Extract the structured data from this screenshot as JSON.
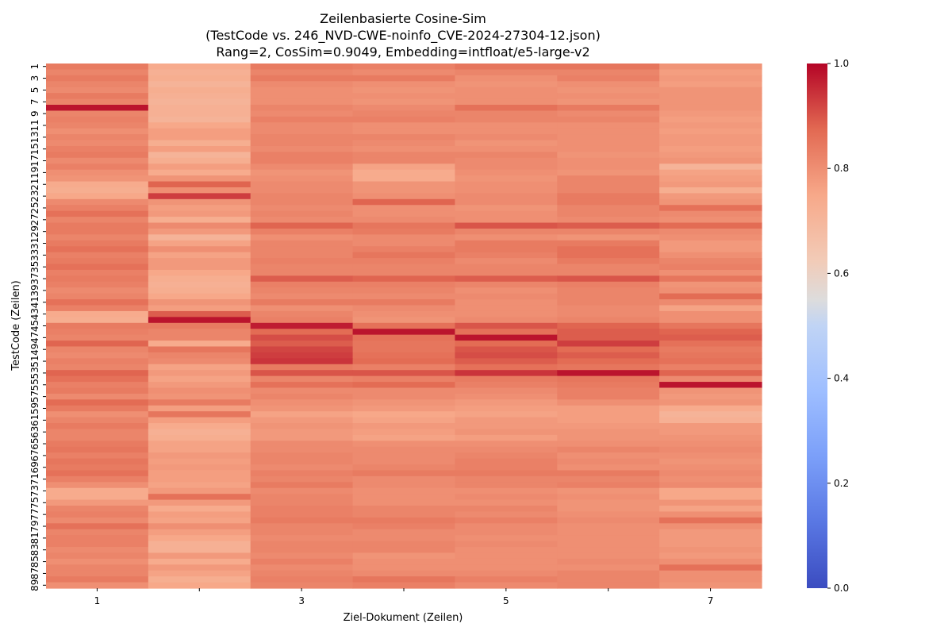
{
  "chart_data": {
    "type": "heatmap",
    "title": [
      "Zeilenbasierte Cosine-Sim",
      "(TestCode vs. 246_NVD-CWE-noinfo_CVE-2024-27304-12.json)",
      "Rang=2, CosSim=0.9049, Embedding=intfloat/e5-large-v2"
    ],
    "xlabel": "Ziel-Dokument (Zeilen)",
    "ylabel": "TestCode (Zeilen)",
    "x_categories": [
      1,
      2,
      3,
      4,
      5,
      6,
      7
    ],
    "x_tick_labels": [
      "1",
      "",
      "3",
      "",
      "5",
      "",
      "7"
    ],
    "y_row_count": 89,
    "y_tick_labels": [
      "1",
      "3",
      "5",
      "7",
      "9",
      "11",
      "13",
      "15",
      "17",
      "19",
      "21",
      "23",
      "25",
      "27",
      "29",
      "31",
      "33",
      "35",
      "37",
      "39",
      "41",
      "43",
      "45",
      "47",
      "49",
      "51",
      "53",
      "55",
      "57",
      "59",
      "61",
      "63",
      "65",
      "67",
      "69",
      "71",
      "73",
      "75",
      "77",
      "79",
      "81",
      "83",
      "85",
      "87",
      "89"
    ],
    "colorbar": {
      "min": 0.0,
      "max": 1.0,
      "ticks": [
        "0.0",
        "0.2",
        "0.4",
        "0.6",
        "0.8",
        "1.0"
      ],
      "colormap": "coolwarm"
    },
    "values": [
      [
        0.84,
        0.74,
        0.84,
        0.83,
        0.85,
        0.85,
        0.79
      ],
      [
        0.82,
        0.72,
        0.82,
        0.81,
        0.82,
        0.82,
        0.77
      ],
      [
        0.84,
        0.73,
        0.84,
        0.84,
        0.8,
        0.83,
        0.78
      ],
      [
        0.82,
        0.71,
        0.81,
        0.8,
        0.79,
        0.8,
        0.77
      ],
      [
        0.81,
        0.73,
        0.8,
        0.79,
        0.8,
        0.79,
        0.79
      ],
      [
        0.84,
        0.72,
        0.8,
        0.8,
        0.8,
        0.8,
        0.79
      ],
      [
        0.82,
        0.71,
        0.8,
        0.79,
        0.8,
        0.79,
        0.79
      ],
      [
        0.98,
        0.72,
        0.82,
        0.81,
        0.86,
        0.84,
        0.79
      ],
      [
        0.82,
        0.72,
        0.81,
        0.82,
        0.82,
        0.81,
        0.78
      ],
      [
        0.83,
        0.71,
        0.83,
        0.83,
        0.82,
        0.82,
        0.77
      ],
      [
        0.82,
        0.75,
        0.81,
        0.8,
        0.8,
        0.8,
        0.78
      ],
      [
        0.8,
        0.77,
        0.81,
        0.8,
        0.8,
        0.8,
        0.77
      ],
      [
        0.82,
        0.77,
        0.82,
        0.82,
        0.81,
        0.8,
        0.78
      ],
      [
        0.81,
        0.73,
        0.82,
        0.81,
        0.79,
        0.8,
        0.78
      ],
      [
        0.83,
        0.77,
        0.81,
        0.8,
        0.8,
        0.8,
        0.77
      ],
      [
        0.84,
        0.71,
        0.83,
        0.82,
        0.82,
        0.79,
        0.78
      ],
      [
        0.81,
        0.73,
        0.83,
        0.82,
        0.81,
        0.8,
        0.79
      ],
      [
        0.83,
        0.77,
        0.81,
        0.76,
        0.81,
        0.8,
        0.71
      ],
      [
        0.8,
        0.74,
        0.79,
        0.74,
        0.8,
        0.79,
        0.76
      ],
      [
        0.79,
        0.79,
        0.8,
        0.74,
        0.79,
        0.82,
        0.77
      ],
      [
        0.74,
        0.88,
        0.81,
        0.79,
        0.8,
        0.82,
        0.78
      ],
      [
        0.73,
        0.8,
        0.81,
        0.79,
        0.8,
        0.82,
        0.73
      ],
      [
        0.75,
        0.93,
        0.82,
        0.8,
        0.81,
        0.84,
        0.78
      ],
      [
        0.81,
        0.79,
        0.82,
        0.88,
        0.81,
        0.84,
        0.79
      ],
      [
        0.83,
        0.77,
        0.81,
        0.8,
        0.79,
        0.82,
        0.86
      ],
      [
        0.86,
        0.78,
        0.82,
        0.8,
        0.8,
        0.82,
        0.81
      ],
      [
        0.82,
        0.73,
        0.81,
        0.81,
        0.8,
        0.81,
        0.8
      ],
      [
        0.84,
        0.81,
        0.88,
        0.85,
        0.9,
        0.89,
        0.87
      ],
      [
        0.84,
        0.78,
        0.83,
        0.84,
        0.82,
        0.82,
        0.81
      ],
      [
        0.82,
        0.71,
        0.8,
        0.81,
        0.8,
        0.79,
        0.8
      ],
      [
        0.84,
        0.76,
        0.82,
        0.81,
        0.84,
        0.84,
        0.78
      ],
      [
        0.86,
        0.8,
        0.82,
        0.83,
        0.84,
        0.86,
        0.78
      ],
      [
        0.83,
        0.76,
        0.82,
        0.85,
        0.83,
        0.86,
        0.8
      ],
      [
        0.84,
        0.78,
        0.83,
        0.83,
        0.81,
        0.84,
        0.82
      ],
      [
        0.86,
        0.78,
        0.82,
        0.82,
        0.82,
        0.82,
        0.83
      ],
      [
        0.83,
        0.75,
        0.82,
        0.82,
        0.82,
        0.82,
        0.8
      ],
      [
        0.84,
        0.73,
        0.89,
        0.88,
        0.89,
        0.9,
        0.85
      ],
      [
        0.83,
        0.72,
        0.83,
        0.83,
        0.82,
        0.83,
        0.79
      ],
      [
        0.81,
        0.73,
        0.82,
        0.82,
        0.8,
        0.82,
        0.8
      ],
      [
        0.82,
        0.75,
        0.81,
        0.81,
        0.81,
        0.82,
        0.87
      ],
      [
        0.86,
        0.79,
        0.84,
        0.84,
        0.8,
        0.82,
        0.81
      ],
      [
        0.83,
        0.77,
        0.8,
        0.81,
        0.8,
        0.81,
        0.76
      ],
      [
        0.74,
        0.89,
        0.82,
        0.8,
        0.8,
        0.81,
        0.8
      ],
      [
        0.73,
        0.98,
        0.83,
        0.79,
        0.81,
        0.82,
        0.8
      ],
      [
        0.84,
        0.84,
        0.97,
        0.86,
        0.9,
        0.88,
        0.85
      ],
      [
        0.83,
        0.82,
        0.87,
        0.98,
        0.86,
        0.89,
        0.88
      ],
      [
        0.82,
        0.82,
        0.91,
        0.86,
        0.98,
        0.89,
        0.89
      ],
      [
        0.88,
        0.74,
        0.89,
        0.85,
        0.87,
        0.93,
        0.86
      ],
      [
        0.82,
        0.85,
        0.92,
        0.85,
        0.9,
        0.87,
        0.84
      ],
      [
        0.81,
        0.82,
        0.93,
        0.86,
        0.91,
        0.89,
        0.85
      ],
      [
        0.83,
        0.81,
        0.94,
        0.87,
        0.89,
        0.87,
        0.86
      ],
      [
        0.82,
        0.76,
        0.84,
        0.83,
        0.86,
        0.85,
        0.83
      ],
      [
        0.88,
        0.78,
        0.9,
        0.9,
        0.94,
        0.98,
        0.88
      ],
      [
        0.86,
        0.76,
        0.82,
        0.83,
        0.84,
        0.85,
        0.81
      ],
      [
        0.83,
        0.78,
        0.86,
        0.87,
        0.83,
        0.84,
        0.98
      ],
      [
        0.84,
        0.8,
        0.81,
        0.81,
        0.81,
        0.83,
        0.79
      ],
      [
        0.81,
        0.79,
        0.82,
        0.81,
        0.8,
        0.83,
        0.78
      ],
      [
        0.87,
        0.84,
        0.8,
        0.79,
        0.78,
        0.8,
        0.79
      ],
      [
        0.84,
        0.77,
        0.79,
        0.78,
        0.77,
        0.77,
        0.74
      ],
      [
        0.8,
        0.85,
        0.76,
        0.75,
        0.76,
        0.77,
        0.71
      ],
      [
        0.82,
        0.77,
        0.78,
        0.76,
        0.78,
        0.77,
        0.72
      ],
      [
        0.84,
        0.74,
        0.79,
        0.78,
        0.78,
        0.78,
        0.78
      ],
      [
        0.82,
        0.72,
        0.78,
        0.77,
        0.79,
        0.79,
        0.78
      ],
      [
        0.82,
        0.73,
        0.78,
        0.76,
        0.77,
        0.79,
        0.79
      ],
      [
        0.84,
        0.76,
        0.81,
        0.8,
        0.8,
        0.8,
        0.8
      ],
      [
        0.85,
        0.76,
        0.81,
        0.81,
        0.81,
        0.82,
        0.81
      ],
      [
        0.83,
        0.78,
        0.82,
        0.81,
        0.82,
        0.8,
        0.8
      ],
      [
        0.85,
        0.77,
        0.82,
        0.81,
        0.83,
        0.81,
        0.79
      ],
      [
        0.84,
        0.78,
        0.81,
        0.82,
        0.83,
        0.8,
        0.8
      ],
      [
        0.86,
        0.77,
        0.83,
        0.84,
        0.84,
        0.84,
        0.81
      ],
      [
        0.83,
        0.77,
        0.82,
        0.81,
        0.82,
        0.82,
        0.8
      ],
      [
        0.8,
        0.76,
        0.84,
        0.81,
        0.82,
        0.83,
        0.81
      ],
      [
        0.74,
        0.78,
        0.81,
        0.8,
        0.8,
        0.79,
        0.75
      ],
      [
        0.74,
        0.86,
        0.82,
        0.8,
        0.81,
        0.8,
        0.75
      ],
      [
        0.78,
        0.78,
        0.82,
        0.8,
        0.8,
        0.79,
        0.79
      ],
      [
        0.82,
        0.74,
        0.83,
        0.82,
        0.82,
        0.79,
        0.76
      ],
      [
        0.83,
        0.77,
        0.83,
        0.82,
        0.81,
        0.8,
        0.8
      ],
      [
        0.81,
        0.76,
        0.84,
        0.84,
        0.83,
        0.81,
        0.86
      ],
      [
        0.86,
        0.8,
        0.82,
        0.83,
        0.81,
        0.8,
        0.8
      ],
      [
        0.82,
        0.77,
        0.82,
        0.81,
        0.81,
        0.8,
        0.78
      ],
      [
        0.83,
        0.75,
        0.81,
        0.81,
        0.8,
        0.8,
        0.78
      ],
      [
        0.83,
        0.72,
        0.82,
        0.82,
        0.81,
        0.8,
        0.78
      ],
      [
        0.81,
        0.72,
        0.82,
        0.82,
        0.8,
        0.8,
        0.79
      ],
      [
        0.82,
        0.78,
        0.81,
        0.79,
        0.8,
        0.8,
        0.78
      ],
      [
        0.8,
        0.74,
        0.83,
        0.8,
        0.8,
        0.81,
        0.8
      ],
      [
        0.82,
        0.78,
        0.81,
        0.8,
        0.8,
        0.8,
        0.86
      ],
      [
        0.82,
        0.76,
        0.82,
        0.81,
        0.81,
        0.82,
        0.8
      ],
      [
        0.84,
        0.73,
        0.83,
        0.85,
        0.83,
        0.82,
        0.8
      ],
      [
        0.8,
        0.75,
        0.82,
        0.83,
        0.81,
        0.82,
        0.79
      ]
    ]
  }
}
